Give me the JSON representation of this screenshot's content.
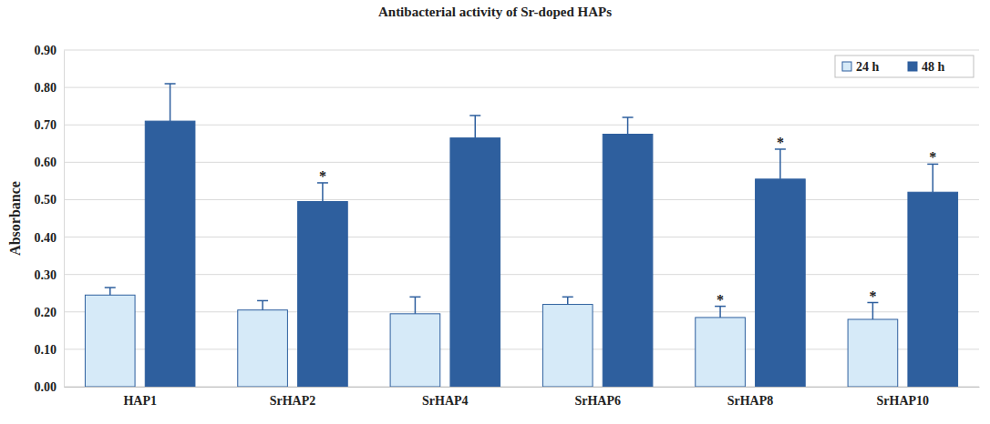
{
  "chart_data": {
    "type": "bar",
    "title": "Antibacterial activity of Sr-doped HAPs",
    "y_label": "Absorbance",
    "categories": [
      "HAP1",
      "SrHAP2",
      "SrHAP4",
      "SrHAP6",
      "SrHAP8",
      "SrHAP10"
    ],
    "series": [
      {
        "name": "24 h",
        "color": "#d6eaf8",
        "values": [
          0.245,
          0.205,
          0.195,
          0.22,
          0.185,
          0.18
        ],
        "errors": [
          0.02,
          0.025,
          0.045,
          0.02,
          0.03,
          0.045
        ],
        "significance": [
          null,
          null,
          null,
          null,
          "*",
          "*"
        ]
      },
      {
        "name": "48 h",
        "color": "#2e5f9e",
        "values": [
          0.71,
          0.495,
          0.665,
          0.675,
          0.555,
          0.52
        ],
        "errors": [
          0.1,
          0.05,
          0.06,
          0.045,
          0.08,
          0.075
        ],
        "significance": [
          null,
          "*",
          null,
          null,
          "*",
          "*"
        ]
      }
    ],
    "ylim": [
      0,
      0.9
    ],
    "yticks": [
      {
        "value": 0,
        "label": "0.00"
      },
      {
        "value": 0.1,
        "label": "0.10"
      },
      {
        "value": 0.2,
        "label": "0.20"
      },
      {
        "value": 0.3,
        "label": "0.30"
      },
      {
        "value": 0.4,
        "label": "0.40"
      },
      {
        "value": 0.5,
        "label": "0.50"
      },
      {
        "value": 0.6,
        "label": "0.60"
      },
      {
        "value": 0.7,
        "label": "0.70"
      },
      {
        "value": 0.8,
        "label": "0.80"
      },
      {
        "value": 0.9,
        "label": "0.90"
      }
    ],
    "grid": true,
    "legend": "top-right"
  }
}
